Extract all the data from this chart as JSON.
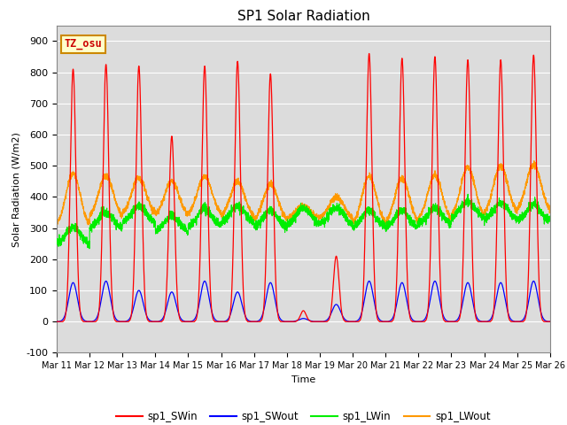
{
  "title": "SP1 Solar Radiation",
  "ylabel": "Solar Radiation (W/m2)",
  "xlabel": "Time",
  "ylim": [
    -100,
    950
  ],
  "yticks": [
    -100,
    0,
    100,
    200,
    300,
    400,
    500,
    600,
    700,
    800,
    900
  ],
  "bg_color": "#dcdcdc",
  "annotation_text": "TZ_osu",
  "annotation_bg": "#ffffcc",
  "annotation_border": "#cc8800",
  "colors": {
    "sp1_SWin": "#ff0000",
    "sp1_SWout": "#0000ff",
    "sp1_LWin": "#00ee00",
    "sp1_LWout": "#ff9900"
  },
  "x_tick_labels": [
    "Mar 11",
    "Mar 12",
    "Mar 13",
    "Mar 14",
    "Mar 15",
    "Mar 16",
    "Mar 17",
    "Mar 18",
    "Mar 19",
    "Mar 20",
    "Mar 21",
    "Mar 22",
    "Mar 23",
    "Mar 24",
    "Mar 25",
    "Mar 26"
  ],
  "num_days": 15,
  "points_per_day": 288,
  "SWin_peaks": [
    810,
    825,
    820,
    595,
    820,
    835,
    795,
    35,
    210,
    860,
    845,
    850,
    840,
    840,
    855
  ],
  "SWout_peaks": [
    125,
    130,
    100,
    95,
    130,
    95,
    125,
    10,
    55,
    130,
    125,
    130,
    125,
    125,
    130
  ],
  "LWin_base": [
    248,
    295,
    315,
    285,
    305,
    315,
    300,
    310,
    310,
    300,
    300,
    310,
    330,
    325,
    320
  ],
  "LWout_night": [
    300,
    330,
    340,
    335,
    340,
    330,
    320,
    330,
    330,
    305,
    310,
    320,
    330,
    340,
    350
  ],
  "LWout_day_peak": [
    475,
    470,
    460,
    450,
    465,
    450,
    440,
    370,
    400,
    465,
    460,
    470,
    495,
    500,
    505
  ]
}
